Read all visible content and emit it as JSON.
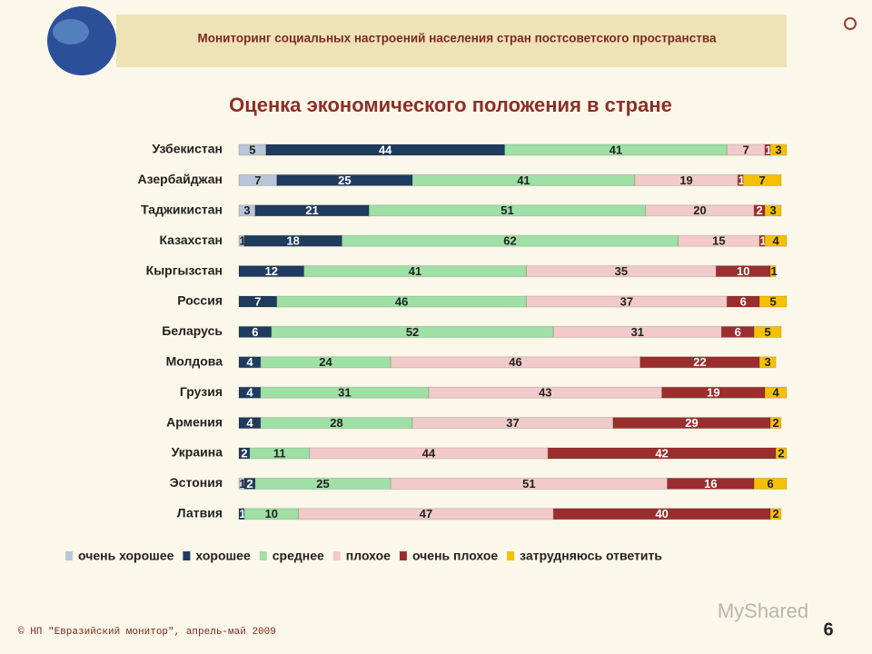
{
  "header": {
    "title": "Мониторинг социальных настроений населения стран постсоветского пространства"
  },
  "chart_data": {
    "type": "stacked-barh",
    "title": "Оценка экономического положения в стране",
    "categories": [
      "Узбекистан",
      "Азербайджан",
      "Таджикистан",
      "Казахстан",
      "Кыргызстан",
      "Россия",
      "Беларусь",
      "Молдова",
      "Грузия",
      "Армения",
      "Украина",
      "Эстония",
      "Латвия"
    ],
    "series": [
      {
        "name": "очень хорошее",
        "color": "#b9c6da",
        "values": [
          5,
          7,
          3,
          1,
          0,
          0,
          0,
          0,
          0,
          0,
          0,
          1,
          0
        ]
      },
      {
        "name": "хорошее",
        "color": "#1f3b5e",
        "values": [
          44,
          25,
          21,
          18,
          12,
          7,
          6,
          4,
          4,
          4,
          2,
          2,
          1
        ]
      },
      {
        "name": "среднее",
        "color": "#9ee0a6",
        "values": [
          41,
          41,
          51,
          62,
          41,
          46,
          52,
          24,
          31,
          28,
          11,
          25,
          10
        ]
      },
      {
        "name": "плохое",
        "color": "#f2caca",
        "values": [
          7,
          19,
          20,
          15,
          35,
          37,
          31,
          46,
          43,
          37,
          44,
          51,
          47
        ]
      },
      {
        "name": "очень плохое",
        "color": "#9a2e2e",
        "values": [
          1,
          1,
          2,
          1,
          10,
          6,
          6,
          22,
          19,
          29,
          42,
          16,
          40
        ]
      },
      {
        "name": "затрудняюсь ответить",
        "color": "#f5c000",
        "values": [
          3,
          7,
          3,
          4,
          1,
          5,
          5,
          3,
          4,
          2,
          2,
          6,
          2
        ]
      }
    ],
    "xlim": [
      0,
      101
    ],
    "legend": "bottom"
  },
  "footer": {
    "source": "© НП \"Евразийский монитор\", апрель-май 2009",
    "page": "6",
    "watermark": "MyShared"
  }
}
